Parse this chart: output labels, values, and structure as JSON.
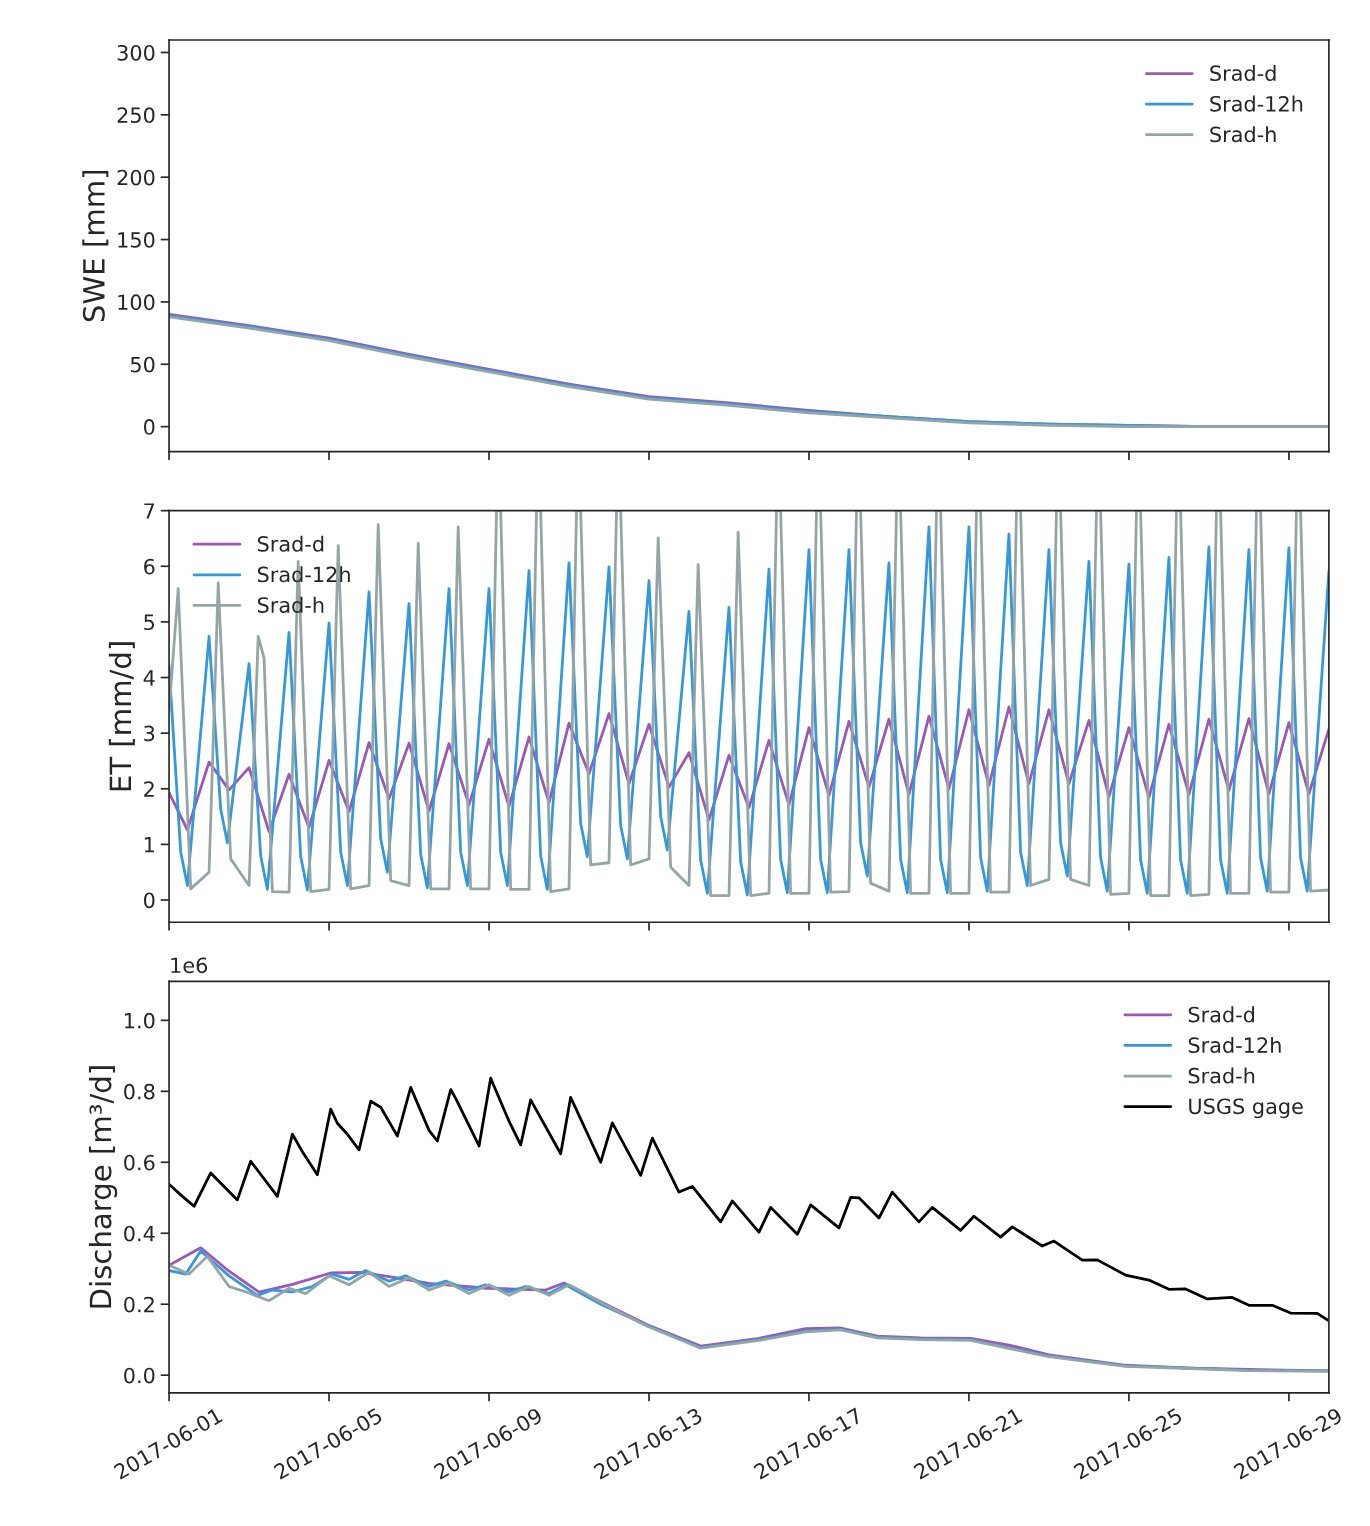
{
  "chart_data": [
    {
      "type": "line",
      "ylabel": "SWE [mm]",
      "xlim": [
        "2017-06-01",
        "2017-06-30"
      ],
      "xticks": [
        "2017-06-01",
        "2017-06-05",
        "2017-06-09",
        "2017-06-13",
        "2017-06-17",
        "2017-06-21",
        "2017-06-25",
        "2017-06-29"
      ],
      "ylim": [
        -20,
        310
      ],
      "yticks": [
        0,
        50,
        100,
        150,
        200,
        250,
        300
      ],
      "tick_labels": "y",
      "legend": "top right",
      "series": [
        {
          "name": "Srad-d",
          "color": "#9b59b6",
          "x": [
            "2017-06-01",
            "2017-06-03",
            "2017-06-05",
            "2017-06-07",
            "2017-06-09",
            "2017-06-11",
            "2017-06-13",
            "2017-06-15",
            "2017-06-17",
            "2017-06-19",
            "2017-06-21",
            "2017-06-23",
            "2017-06-25",
            "2017-06-27",
            "2017-06-30"
          ],
          "values": [
            90,
            81,
            71,
            58,
            46,
            34,
            24,
            19,
            13,
            8,
            4,
            2,
            1,
            0,
            0
          ]
        },
        {
          "name": "Srad-12h",
          "color": "#3498db",
          "x": [
            "2017-06-01",
            "2017-06-03",
            "2017-06-05",
            "2017-06-07",
            "2017-06-09",
            "2017-06-11",
            "2017-06-13",
            "2017-06-15",
            "2017-06-17",
            "2017-06-19",
            "2017-06-21",
            "2017-06-23",
            "2017-06-25",
            "2017-06-27",
            "2017-06-30"
          ],
          "values": [
            89,
            80,
            70,
            57,
            45,
            33,
            23,
            18,
            12,
            8,
            4,
            2,
            1,
            0,
            0
          ]
        },
        {
          "name": "Srad-h",
          "color": "#95a5a6",
          "x": [
            "2017-06-01",
            "2017-06-03",
            "2017-06-05",
            "2017-06-07",
            "2017-06-09",
            "2017-06-11",
            "2017-06-13",
            "2017-06-15",
            "2017-06-17",
            "2017-06-19",
            "2017-06-21",
            "2017-06-23",
            "2017-06-25",
            "2017-06-27",
            "2017-06-30"
          ],
          "values": [
            88,
            79,
            69,
            56,
            44,
            32,
            22,
            17,
            11,
            7,
            3,
            1,
            0,
            0,
            0
          ]
        }
      ]
    },
    {
      "type": "line",
      "ylabel": "ET [mm/d]",
      "xlim": [
        "2017-06-01",
        "2017-06-30"
      ],
      "xticks": [
        "2017-06-01",
        "2017-06-05",
        "2017-06-09",
        "2017-06-13",
        "2017-06-17",
        "2017-06-21",
        "2017-06-25",
        "2017-06-29"
      ],
      "ylim": [
        -0.4,
        7
      ],
      "yticks": [
        0,
        1,
        2,
        3,
        4,
        5,
        6,
        7
      ],
      "tick_labels": "y",
      "legend": "top left",
      "series": [
        {
          "name": "Srad-d",
          "color": "#9b59b6",
          "x": [
            "2017-06-01T00:00",
            "2017-06-01T11:00",
            "2017-06-02T00:00",
            "2017-06-02T12:00",
            "2017-06-03T00:00",
            "2017-06-03T12:00",
            "2017-06-04T00:00",
            "2017-06-04T12:00",
            "2017-06-05T00:00",
            "2017-06-05T12:00",
            "2017-06-06T00:00",
            "2017-06-06T12:00",
            "2017-06-07T00:00",
            "2017-06-07T12:00",
            "2017-06-08T00:00",
            "2017-06-08T12:00",
            "2017-06-09T00:00",
            "2017-06-09T12:00",
            "2017-06-10T00:00",
            "2017-06-10T12:00",
            "2017-06-11T00:00",
            "2017-06-11T12:00",
            "2017-06-12T00:00",
            "2017-06-12T12:00",
            "2017-06-13T00:00",
            "2017-06-13T12:00",
            "2017-06-14T00:00",
            "2017-06-14T12:00",
            "2017-06-15T00:00",
            "2017-06-15T12:00",
            "2017-06-16T00:00",
            "2017-06-16T12:00",
            "2017-06-17T00:00",
            "2017-06-17T12:00",
            "2017-06-18T00:00",
            "2017-06-18T12:00",
            "2017-06-19T00:00",
            "2017-06-19T12:00",
            "2017-06-20T00:00",
            "2017-06-20T12:00",
            "2017-06-21T00:00",
            "2017-06-21T12:00",
            "2017-06-22T00:00",
            "2017-06-22T12:00",
            "2017-06-23T00:00",
            "2017-06-23T12:00",
            "2017-06-24T00:00",
            "2017-06-24T12:00",
            "2017-06-25T00:00",
            "2017-06-25T12:00",
            "2017-06-26T00:00",
            "2017-06-26T12:00",
            "2017-06-27T00:00",
            "2017-06-27T12:00",
            "2017-06-28T00:00",
            "2017-06-28T12:00",
            "2017-06-29T00:00",
            "2017-06-29T12:00",
            "2017-06-30T00:00"
          ],
          "values": [
            1.93,
            1.26,
            2.48,
            1.98,
            2.38,
            1.23,
            2.26,
            1.3,
            2.51,
            1.59,
            2.83,
            1.82,
            2.82,
            1.6,
            2.81,
            1.71,
            2.89,
            1.68,
            2.93,
            1.75,
            3.18,
            2.27,
            3.35,
            2.09,
            3.16,
            2.03,
            2.65,
            1.44,
            2.6,
            1.66,
            2.87,
            1.71,
            3.1,
            1.88,
            3.21,
            2.03,
            3.25,
            1.9,
            3.3,
            2.0,
            3.42,
            2.06,
            3.47,
            2.09,
            3.42,
            2.09,
            3.23,
            1.86,
            3.1,
            1.84,
            3.16,
            1.9,
            3.25,
            1.97,
            3.26,
            1.91,
            3.19,
            1.91,
            3.07
          ]
        },
        {
          "name": "Srad-12h",
          "color": "#3498db",
          "x": [
            "2017-06-01T00:00",
            "2017-06-01T07:00",
            "2017-06-01T11:00",
            "2017-06-02T00:00",
            "2017-06-02T07:00",
            "2017-06-02T11:00",
            "2017-06-03T00:00",
            "2017-06-03T07:00",
            "2017-06-03T11:00",
            "2017-06-04T00:00",
            "2017-06-04T07:00",
            "2017-06-04T11:00",
            "2017-06-05T00:00",
            "2017-06-05T07:00",
            "2017-06-05T11:00",
            "2017-06-06T00:00",
            "2017-06-06T07:00",
            "2017-06-06T11:00",
            "2017-06-07T00:00",
            "2017-06-07T07:00",
            "2017-06-07T11:00",
            "2017-06-08T00:00",
            "2017-06-08T07:00",
            "2017-06-08T11:00",
            "2017-06-09T00:00",
            "2017-06-09T07:00",
            "2017-06-09T11:00",
            "2017-06-10T00:00",
            "2017-06-10T07:00",
            "2017-06-10T11:00",
            "2017-06-11T00:00",
            "2017-06-11T07:00",
            "2017-06-11T11:00",
            "2017-06-12T00:00",
            "2017-06-12T07:00",
            "2017-06-12T11:00",
            "2017-06-13T00:00",
            "2017-06-13T07:00",
            "2017-06-13T11:00",
            "2017-06-14T00:00",
            "2017-06-14T07:00",
            "2017-06-14T11:00",
            "2017-06-15T00:00",
            "2017-06-15T07:00",
            "2017-06-15T11:00",
            "2017-06-16T00:00",
            "2017-06-16T07:00",
            "2017-06-16T11:00",
            "2017-06-17T00:00",
            "2017-06-17T07:00",
            "2017-06-17T11:00",
            "2017-06-18T00:00",
            "2017-06-18T07:00",
            "2017-06-18T11:00",
            "2017-06-19T00:00",
            "2017-06-19T07:00",
            "2017-06-19T11:00",
            "2017-06-20T00:00",
            "2017-06-20T07:00",
            "2017-06-20T11:00",
            "2017-06-21T00:00",
            "2017-06-21T07:00",
            "2017-06-21T11:00",
            "2017-06-22T00:00",
            "2017-06-22T07:00",
            "2017-06-22T11:00",
            "2017-06-23T00:00",
            "2017-06-23T07:00",
            "2017-06-23T11:00",
            "2017-06-24T00:00",
            "2017-06-24T07:00",
            "2017-06-24T11:00",
            "2017-06-25T00:00",
            "2017-06-25T07:00",
            "2017-06-25T11:00",
            "2017-06-26T00:00",
            "2017-06-26T07:00",
            "2017-06-26T11:00",
            "2017-06-27T00:00",
            "2017-06-27T07:00",
            "2017-06-27T11:00",
            "2017-06-28T00:00",
            "2017-06-28T07:00",
            "2017-06-28T11:00",
            "2017-06-29T00:00",
            "2017-06-29T07:00",
            "2017-06-29T11:00",
            "2017-06-30T00:00"
          ],
          "values": [
            4.22,
            0.86,
            0.26,
            4.74,
            1.63,
            1.03,
            4.25,
            0.79,
            0.19,
            4.81,
            0.78,
            0.18,
            4.98,
            0.86,
            0.26,
            5.54,
            1.1,
            0.5,
            5.33,
            0.82,
            0.22,
            5.6,
            0.86,
            0.26,
            5.6,
            0.86,
            0.26,
            5.92,
            0.79,
            0.19,
            6.06,
            1.38,
            0.78,
            5.99,
            1.34,
            0.74,
            5.74,
            1.5,
            0.9,
            5.19,
            0.72,
            0.12,
            5.26,
            0.69,
            0.09,
            5.95,
            0.73,
            0.13,
            6.3,
            0.73,
            0.13,
            6.3,
            1.03,
            0.43,
            6.06,
            0.73,
            0.13,
            6.71,
            0.73,
            0.13,
            6.71,
            0.76,
            0.16,
            6.58,
            0.86,
            0.26,
            6.3,
            1.03,
            0.43,
            6.09,
            0.76,
            0.16,
            6.04,
            0.72,
            0.12,
            6.16,
            0.72,
            0.12,
            6.35,
            0.72,
            0.12,
            6.3,
            0.76,
            0.16,
            6.33,
            0.76,
            0.16,
            5.92
          ]
        },
        {
          "name": "Srad-h",
          "color": "#95a5a6",
          "x": [
            "2017-06-01T00:00",
            "2017-06-01T05:30",
            "2017-06-01T13:00",
            "2017-06-02T00:00",
            "2017-06-02T05:30",
            "2017-06-02T13:00",
            "2017-06-03T00:00",
            "2017-06-03T05:30",
            "2017-06-03T09:00",
            "2017-06-03T14:00",
            "2017-06-04T00:00",
            "2017-06-04T05:30",
            "2017-06-04T13:00",
            "2017-06-05T00:00",
            "2017-06-05T05:30",
            "2017-06-05T13:00",
            "2017-06-06T00:00",
            "2017-06-06T05:30",
            "2017-06-06T13:00",
            "2017-06-07T00:00",
            "2017-06-07T05:30",
            "2017-06-07T13:00",
            "2017-06-08T00:00",
            "2017-06-08T05:30",
            "2017-06-08T13:00",
            "2017-06-09T00:00",
            "2017-06-09T04:30",
            "2017-06-09T07:00",
            "2017-06-09T13:00",
            "2017-06-10T00:00",
            "2017-06-10T04:30",
            "2017-06-10T07:00",
            "2017-06-10T13:00",
            "2017-06-11T00:00",
            "2017-06-11T04:30",
            "2017-06-11T07:00",
            "2017-06-11T13:00",
            "2017-06-12T00:00",
            "2017-06-12T04:30",
            "2017-06-12T07:00",
            "2017-06-12T13:00",
            "2017-06-13T00:00",
            "2017-06-13T05:30",
            "2017-06-13T13:00",
            "2017-06-14T00:00",
            "2017-06-14T05:30",
            "2017-06-14T13:00",
            "2017-06-15T00:00",
            "2017-06-15T05:30",
            "2017-06-15T13:00",
            "2017-06-16T00:00",
            "2017-06-16T04:30",
            "2017-06-16T07:00",
            "2017-06-16T13:00",
            "2017-06-17T00:00",
            "2017-06-17T04:30",
            "2017-06-17T07:00",
            "2017-06-17T13:00",
            "2017-06-18T00:00",
            "2017-06-18T04:30",
            "2017-06-18T07:00",
            "2017-06-18T13:00",
            "2017-06-19T00:00",
            "2017-06-19T04:30",
            "2017-06-19T07:00",
            "2017-06-19T13:00",
            "2017-06-20T00:00",
            "2017-06-20T04:30",
            "2017-06-20T07:00",
            "2017-06-20T13:00",
            "2017-06-21T00:00",
            "2017-06-21T04:30",
            "2017-06-21T07:00",
            "2017-06-21T13:00",
            "2017-06-22T00:00",
            "2017-06-22T04:30",
            "2017-06-22T07:00",
            "2017-06-22T13:00",
            "2017-06-23T00:00",
            "2017-06-23T04:30",
            "2017-06-23T07:00",
            "2017-06-23T13:00",
            "2017-06-24T00:00",
            "2017-06-24T04:30",
            "2017-06-24T07:00",
            "2017-06-24T13:00",
            "2017-06-25T00:00",
            "2017-06-25T04:30",
            "2017-06-25T07:00",
            "2017-06-25T13:00",
            "2017-06-26T00:00",
            "2017-06-26T04:30",
            "2017-06-26T07:00",
            "2017-06-26T13:00",
            "2017-06-27T00:00",
            "2017-06-27T04:30",
            "2017-06-27T07:00",
            "2017-06-27T13:00",
            "2017-06-28T00:00",
            "2017-06-28T04:30",
            "2017-06-28T07:00",
            "2017-06-28T13:00",
            "2017-06-29T00:00",
            "2017-06-29T04:30",
            "2017-06-29T07:00",
            "2017-06-29T13:00",
            "2017-06-30T00:00"
          ],
          "values": [
            3.4,
            5.6,
            0.2,
            0.5,
            5.7,
            0.74,
            0.26,
            4.74,
            4.35,
            0.15,
            0.14,
            6.09,
            0.15,
            0.19,
            6.37,
            0.2,
            0.26,
            6.75,
            0.35,
            0.26,
            6.41,
            0.2,
            0.2,
            6.71,
            0.2,
            0.2,
            7.0,
            7.0,
            0.19,
            0.19,
            7.0,
            7.0,
            0.15,
            0.2,
            7.0,
            7.0,
            0.63,
            0.67,
            7.0,
            7.0,
            0.63,
            0.74,
            6.51,
            0.59,
            0.26,
            6.03,
            0.08,
            0.08,
            6.61,
            0.08,
            0.12,
            7.0,
            7.0,
            0.12,
            0.12,
            7.0,
            7.0,
            0.14,
            0.15,
            7.0,
            7.0,
            0.3,
            0.16,
            7.0,
            7.0,
            0.12,
            0.12,
            7.0,
            7.0,
            0.12,
            0.12,
            7.0,
            7.0,
            0.14,
            0.14,
            7.0,
            7.0,
            0.26,
            0.37,
            7.0,
            7.0,
            0.37,
            0.26,
            7.0,
            7.0,
            0.1,
            0.12,
            7.0,
            7.0,
            0.08,
            0.08,
            7.0,
            7.0,
            0.08,
            0.1,
            7.0,
            7.0,
            0.12,
            0.12,
            7.0,
            7.0,
            0.14,
            0.14,
            7.0,
            7.0,
            0.16,
            0.18
          ]
        }
      ]
    },
    {
      "type": "line",
      "ylabel": "Discharge [m³/d]",
      "annotations": [
        "1e6"
      ],
      "xlim": [
        "2017-06-01",
        "2017-06-30"
      ],
      "xticks": [
        "2017-06-01",
        "2017-06-05",
        "2017-06-09",
        "2017-06-13",
        "2017-06-17",
        "2017-06-21",
        "2017-06-25",
        "2017-06-29"
      ],
      "ylim": [
        -0.05,
        1.11
      ],
      "yticks": [
        {
          "value": 0,
          "label": "0.0"
        },
        0.2,
        0.4,
        0.6,
        0.8,
        {
          "value": 1,
          "label": "1.0"
        }
      ],
      "legend": "top right",
      "series": [
        {
          "name": "Srad-d",
          "color": "#9b59b6",
          "x": [
            "2017-06-01T00:00",
            "2017-06-01T19:00",
            "2017-06-02T12:00",
            "2017-06-03T06:00",
            "2017-06-04T02:00",
            "2017-06-05T01:00",
            "2017-06-05T19:00",
            "2017-06-06T13:00",
            "2017-06-07T12:00",
            "2017-06-08T23:00",
            "2017-06-10T10:00",
            "2017-06-10T21:00",
            "2017-06-11T19:00",
            "2017-06-12T23:00",
            "2017-06-14T07:00",
            "2017-06-15T18:00",
            "2017-06-16T22:00",
            "2017-06-17T19:00",
            "2017-06-18T17:00",
            "2017-06-19T19:00",
            "2017-06-21T01:00",
            "2017-06-22T00:00",
            "2017-06-23T00:00",
            "2017-06-24T22:00",
            "2017-06-26T12:00",
            "2017-06-28T00:00",
            "2017-06-30T00:00"
          ],
          "values": [
            0.31,
            0.359,
            0.293,
            0.234,
            0.256,
            0.288,
            0.29,
            0.277,
            0.259,
            0.245,
            0.24,
            0.26,
            0.207,
            0.142,
            0.082,
            0.104,
            0.131,
            0.133,
            0.11,
            0.105,
            0.104,
            0.085,
            0.057,
            0.028,
            0.02,
            0.016,
            0.012
          ]
        },
        {
          "name": "Srad-12h",
          "color": "#3498db",
          "x": [
            "2017-06-01T00:00",
            "2017-06-01T10:00",
            "2017-06-01T19:00",
            "2017-06-02T12:00",
            "2017-06-03T05:00",
            "2017-06-03T14:00",
            "2017-06-04T02:00",
            "2017-06-04T14:00",
            "2017-06-05T02:00",
            "2017-06-05T12:00",
            "2017-06-05T22:00",
            "2017-06-06T12:00",
            "2017-06-06T22:00",
            "2017-06-07T12:00",
            "2017-06-07T22:00",
            "2017-06-08T12:00",
            "2017-06-08T22:00",
            "2017-06-09T12:00",
            "2017-06-09T22:00",
            "2017-06-10T12:00",
            "2017-06-10T22:00",
            "2017-06-11T19:00",
            "2017-06-12T23:00",
            "2017-06-14T07:00",
            "2017-06-15T18:00",
            "2017-06-16T22:00",
            "2017-06-17T19:00",
            "2017-06-18T17:00",
            "2017-06-19T19:00",
            "2017-06-21T01:00",
            "2017-06-23T00:00",
            "2017-06-24T22:00",
            "2017-06-28T00:00",
            "2017-06-30T00:00"
          ],
          "values": [
            0.295,
            0.285,
            0.35,
            0.28,
            0.225,
            0.24,
            0.235,
            0.25,
            0.285,
            0.27,
            0.295,
            0.265,
            0.28,
            0.25,
            0.265,
            0.24,
            0.255,
            0.235,
            0.25,
            0.23,
            0.255,
            0.2,
            0.14,
            0.078,
            0.1,
            0.125,
            0.13,
            0.107,
            0.102,
            0.1,
            0.054,
            0.026,
            0.014,
            0.012
          ]
        },
        {
          "name": "Srad-h",
          "color": "#95a5a6",
          "x": [
            "2017-06-01T00:00",
            "2017-06-01T12:00",
            "2017-06-01T23:00",
            "2017-06-02T12:00",
            "2017-06-02T22:00",
            "2017-06-03T12:00",
            "2017-06-04T00:00",
            "2017-06-04T10:00",
            "2017-06-05T00:00",
            "2017-06-05T12:00",
            "2017-06-06T00:00",
            "2017-06-06T12:00",
            "2017-06-07T00:00",
            "2017-06-07T12:00",
            "2017-06-08T00:00",
            "2017-06-08T12:00",
            "2017-06-09T00:00",
            "2017-06-09T12:00",
            "2017-06-10T00:00",
            "2017-06-10T12:00",
            "2017-06-11T00:00",
            "2017-06-11T10:00",
            "2017-06-11T19:00",
            "2017-06-12T23:00",
            "2017-06-14T07:00",
            "2017-06-15T18:00",
            "2017-06-16T22:00",
            "2017-06-17T19:00",
            "2017-06-18T17:00",
            "2017-06-19T19:00",
            "2017-06-21T01:00",
            "2017-06-23T00:00",
            "2017-06-24T22:00",
            "2017-06-28T00:00",
            "2017-06-30T00:00"
          ],
          "values": [
            0.31,
            0.285,
            0.335,
            0.25,
            0.235,
            0.21,
            0.245,
            0.23,
            0.28,
            0.255,
            0.29,
            0.25,
            0.275,
            0.24,
            0.26,
            0.23,
            0.255,
            0.225,
            0.25,
            0.225,
            0.255,
            0.23,
            0.205,
            0.138,
            0.076,
            0.098,
            0.122,
            0.128,
            0.105,
            0.1,
            0.098,
            0.052,
            0.025,
            0.013,
            0.011
          ]
        },
        {
          "name": "USGS gage",
          "color": "#000000",
          "x": [
            "2017-06-01T00:00",
            "2017-06-01T08:00",
            "2017-06-01T15:00",
            "2017-06-02T01:00",
            "2017-06-02T17:00",
            "2017-06-03T01:00",
            "2017-06-03T17:00",
            "2017-06-04T02:00",
            "2017-06-04T08:00",
            "2017-06-04T17:00",
            "2017-06-05T01:00",
            "2017-06-05T05:00",
            "2017-06-05T11:00",
            "2017-06-05T18:00",
            "2017-06-06T01:00",
            "2017-06-06T07:00",
            "2017-06-06T17:00",
            "2017-06-07T01:00",
            "2017-06-07T12:00",
            "2017-06-07T17:00",
            "2017-06-08T01:00",
            "2017-06-08T04:00",
            "2017-06-08T18:00",
            "2017-06-09T01:00",
            "2017-06-09T12:00",
            "2017-06-09T19:00",
            "2017-06-10T01:00",
            "2017-06-10T19:00",
            "2017-06-11T01:00",
            "2017-06-11T19:00",
            "2017-06-12T02:00",
            "2017-06-12T19:00",
            "2017-06-13T02:00",
            "2017-06-13T18:00",
            "2017-06-14T02:00",
            "2017-06-14T19:00",
            "2017-06-15T02:00",
            "2017-06-15T18:00",
            "2017-06-16T01:00",
            "2017-06-16T17:00",
            "2017-06-17T01:00",
            "2017-06-17T18:00",
            "2017-06-18T01:00",
            "2017-06-18T06:00",
            "2017-06-18T18:00",
            "2017-06-19T02:00",
            "2017-06-19T18:00",
            "2017-06-20T02:00",
            "2017-06-20T19:00",
            "2017-06-21T03:00",
            "2017-06-21T19:00",
            "2017-06-22T02:00",
            "2017-06-22T20:00",
            "2017-06-23T03:00",
            "2017-06-23T20:00",
            "2017-06-24T05:00",
            "2017-06-24T22:00",
            "2017-06-25T12:00",
            "2017-06-26T00:00",
            "2017-06-26T10:00",
            "2017-06-26T23:00",
            "2017-06-27T14:00",
            "2017-06-28T00:00",
            "2017-06-28T14:00",
            "2017-06-29T01:00",
            "2017-06-29T17:00",
            "2017-06-30T00:00"
          ],
          "values": [
            0.538,
            0.504,
            0.476,
            0.57,
            0.494,
            0.603,
            0.504,
            0.679,
            0.63,
            0.565,
            0.75,
            0.71,
            0.679,
            0.635,
            0.772,
            0.755,
            0.674,
            0.811,
            0.69,
            0.66,
            0.805,
            0.78,
            0.646,
            0.837,
            0.716,
            0.649,
            0.776,
            0.624,
            0.783,
            0.6,
            0.711,
            0.563,
            0.668,
            0.516,
            0.532,
            0.432,
            0.491,
            0.403,
            0.473,
            0.397,
            0.48,
            0.415,
            0.501,
            0.5,
            0.443,
            0.516,
            0.432,
            0.473,
            0.408,
            0.448,
            0.389,
            0.418,
            0.364,
            0.378,
            0.324,
            0.325,
            0.282,
            0.268,
            0.242,
            0.243,
            0.215,
            0.219,
            0.197,
            0.197,
            0.175,
            0.174,
            0.153
          ]
        }
      ]
    }
  ]
}
